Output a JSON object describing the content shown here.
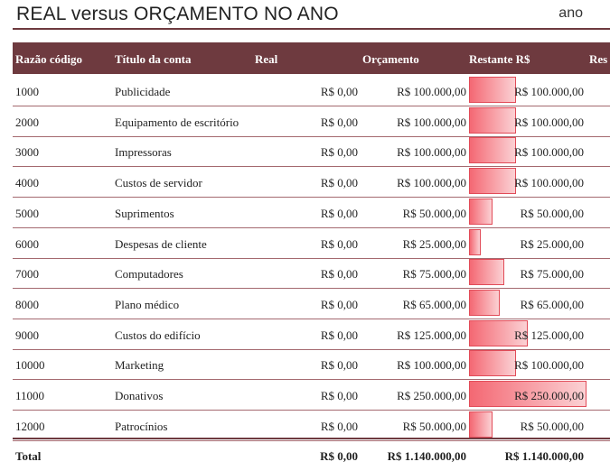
{
  "header": {
    "title": "REAL versus ORÇAMENTO NO ANO",
    "year_label": "ano"
  },
  "columns": {
    "code": "Razão código",
    "title": "Título da conta",
    "real": "Real",
    "budget": "Orçamento",
    "remaining": "Restante R$",
    "extra": "Res"
  },
  "rows": [
    {
      "code": "1000",
      "title": "Publicidade",
      "real": "R$ 0,00",
      "budget": "R$ 100.000,00",
      "remaining": "R$ 100.000,00",
      "remaining_value": 100000
    },
    {
      "code": "2000",
      "title": "Equipamento de escritório",
      "real": "R$ 0,00",
      "budget": "R$ 100.000,00",
      "remaining": "R$ 100.000,00",
      "remaining_value": 100000
    },
    {
      "code": "3000",
      "title": "Impressoras",
      "real": "R$ 0,00",
      "budget": "R$ 100.000,00",
      "remaining": "R$ 100.000,00",
      "remaining_value": 100000
    },
    {
      "code": "4000",
      "title": "Custos de servidor",
      "real": "R$ 0,00",
      "budget": "R$ 100.000,00",
      "remaining": "R$ 100.000,00",
      "remaining_value": 100000
    },
    {
      "code": "5000",
      "title": "Suprimentos",
      "real": "R$ 0,00",
      "budget": "R$ 50.000,00",
      "remaining": "R$ 50.000,00",
      "remaining_value": 50000
    },
    {
      "code": "6000",
      "title": "Despesas de cliente",
      "real": "R$ 0,00",
      "budget": "R$ 25.000,00",
      "remaining": "R$ 25.000,00",
      "remaining_value": 25000
    },
    {
      "code": "7000",
      "title": "Computadores",
      "real": "R$ 0,00",
      "budget": "R$ 75.000,00",
      "remaining": "R$ 75.000,00",
      "remaining_value": 75000
    },
    {
      "code": "8000",
      "title": "Plano médico",
      "real": "R$ 0,00",
      "budget": "R$ 65.000,00",
      "remaining": "R$ 65.000,00",
      "remaining_value": 65000
    },
    {
      "code": "9000",
      "title": "Custos do edifício",
      "real": "R$ 0,00",
      "budget": "R$ 125.000,00",
      "remaining": "R$ 125.000,00",
      "remaining_value": 125000
    },
    {
      "code": "10000",
      "title": "Marketing",
      "real": "R$ 0,00",
      "budget": "R$ 100.000,00",
      "remaining": "R$ 100.000,00",
      "remaining_value": 100000
    },
    {
      "code": "11000",
      "title": "Donativos",
      "real": "R$ 0,00",
      "budget": "R$ 250.000,00",
      "remaining": "R$ 250.000,00",
      "remaining_value": 250000
    },
    {
      "code": "12000",
      "title": "Patrocínios",
      "real": "R$ 0,00",
      "budget": "R$ 50.000,00",
      "remaining": "R$ 50.000,00",
      "remaining_value": 50000
    }
  ],
  "total": {
    "label": "Total",
    "real": "R$ 0,00",
    "budget": "R$ 1.140.000,00",
    "remaining": "R$ 1.140.000,00"
  },
  "colors": {
    "header_bg": "#6e3a3f",
    "bar_start": "#f46873",
    "bar_end": "#fbd1d4"
  }
}
